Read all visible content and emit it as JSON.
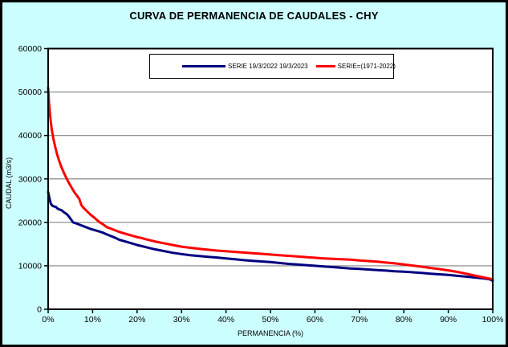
{
  "title": "CURVA DE PERMANENCIA DE CAUDALES - CHY",
  "colors": {
    "background": "#CCFFFF",
    "plot_background": "#FFFFFF",
    "gridline": "#848484",
    "axis": "#000000",
    "series_blue": "#000080",
    "series_red": "#FF0000"
  },
  "chart_data": {
    "type": "line",
    "title": "CURVA DE PERMANENCIA DE CAUDALES - CHY",
    "xlabel": "PERMANENCIA (%)",
    "ylabel": "CAUDAL (m3/s)",
    "xlim": [
      0,
      100
    ],
    "ylim": [
      0,
      60000
    ],
    "grid": "horizontal",
    "legend_position": "top-center-inside",
    "x_ticks": [
      "0%",
      "10%",
      "20%",
      "30%",
      "40%",
      "50%",
      "60%",
      "70%",
      "80%",
      "90%",
      "100%"
    ],
    "x_tick_values": [
      0,
      10,
      20,
      30,
      40,
      50,
      60,
      70,
      80,
      90,
      100
    ],
    "y_ticks": [
      "0",
      "10000",
      "20000",
      "30000",
      "40000",
      "50000",
      "60000"
    ],
    "y_tick_values": [
      0,
      10000,
      20000,
      30000,
      40000,
      50000,
      60000
    ],
    "series": [
      {
        "name": "SERIE 19/3/2022 19/3/2023",
        "color": "#000080",
        "points": [
          [
            0,
            27000
          ],
          [
            0.3,
            25500
          ],
          [
            0.6,
            24300
          ],
          [
            1,
            23800
          ],
          [
            1.8,
            23500
          ],
          [
            2.2,
            23100
          ],
          [
            3,
            22800
          ],
          [
            3.6,
            22300
          ],
          [
            4.2,
            21900
          ],
          [
            4.7,
            21300
          ],
          [
            5.2,
            20600
          ],
          [
            5.6,
            20000
          ],
          [
            6.5,
            19700
          ],
          [
            7.5,
            19300
          ],
          [
            8.5,
            18900
          ],
          [
            9.5,
            18500
          ],
          [
            10.5,
            18200
          ],
          [
            11.5,
            17900
          ],
          [
            12.4,
            17600
          ],
          [
            13,
            17300
          ],
          [
            14,
            16900
          ],
          [
            15,
            16500
          ],
          [
            16,
            16000
          ],
          [
            17,
            15700
          ],
          [
            18,
            15400
          ],
          [
            19,
            15100
          ],
          [
            20,
            14800
          ],
          [
            22,
            14300
          ],
          [
            24,
            13800
          ],
          [
            26,
            13400
          ],
          [
            28,
            13000
          ],
          [
            30,
            12700
          ],
          [
            32,
            12450
          ],
          [
            34,
            12250
          ],
          [
            36,
            12050
          ],
          [
            38,
            11900
          ],
          [
            40,
            11700
          ],
          [
            42,
            11500
          ],
          [
            44,
            11300
          ],
          [
            46,
            11150
          ],
          [
            48,
            11000
          ],
          [
            50,
            10850
          ],
          [
            52,
            10650
          ],
          [
            54,
            10450
          ],
          [
            56,
            10300
          ],
          [
            58,
            10150
          ],
          [
            60,
            10000
          ],
          [
            62,
            9850
          ],
          [
            64,
            9700
          ],
          [
            66,
            9550
          ],
          [
            68,
            9400
          ],
          [
            70,
            9300
          ],
          [
            72,
            9150
          ],
          [
            74,
            9000
          ],
          [
            76,
            8900
          ],
          [
            78,
            8750
          ],
          [
            80,
            8650
          ],
          [
            82,
            8500
          ],
          [
            84,
            8350
          ],
          [
            86,
            8200
          ],
          [
            88,
            8050
          ],
          [
            90,
            7900
          ],
          [
            92,
            7700
          ],
          [
            94,
            7500
          ],
          [
            96,
            7300
          ],
          [
            98,
            7100
          ],
          [
            99.3,
            6900
          ],
          [
            100,
            6550
          ]
        ]
      },
      {
        "name": "SERIE=(1971-2022)",
        "color": "#FF0000",
        "points": [
          [
            0,
            51000
          ],
          [
            0.2,
            47500
          ],
          [
            0.5,
            44000
          ],
          [
            0.8,
            41500
          ],
          [
            1.2,
            39200
          ],
          [
            1.6,
            37300
          ],
          [
            2,
            35700
          ],
          [
            2.5,
            34100
          ],
          [
            3,
            32700
          ],
          [
            3.5,
            31500
          ],
          [
            4,
            30400
          ],
          [
            4.5,
            29400
          ],
          [
            5,
            28500
          ],
          [
            5.5,
            27600
          ],
          [
            6,
            26800
          ],
          [
            6.5,
            26100
          ],
          [
            7,
            25400
          ],
          [
            7.5,
            23900
          ],
          [
            8,
            23300
          ],
          [
            8.5,
            22800
          ],
          [
            9,
            22300
          ],
          [
            9.5,
            21800
          ],
          [
            10,
            21400
          ],
          [
            10.8,
            20700
          ],
          [
            11.6,
            20000
          ],
          [
            12.4,
            19500
          ],
          [
            13.2,
            18900
          ],
          [
            14,
            18600
          ],
          [
            15,
            18200
          ],
          [
            16,
            17800
          ],
          [
            17,
            17500
          ],
          [
            18,
            17200
          ],
          [
            19,
            16900
          ],
          [
            20,
            16600
          ],
          [
            21,
            16400
          ],
          [
            22,
            16100
          ],
          [
            24,
            15600
          ],
          [
            26,
            15200
          ],
          [
            28,
            14800
          ],
          [
            30,
            14400
          ],
          [
            32,
            14150
          ],
          [
            34,
            13900
          ],
          [
            36,
            13700
          ],
          [
            38,
            13500
          ],
          [
            40,
            13350
          ],
          [
            42,
            13200
          ],
          [
            44,
            13050
          ],
          [
            46,
            12900
          ],
          [
            48,
            12750
          ],
          [
            50,
            12600
          ],
          [
            52,
            12450
          ],
          [
            54,
            12300
          ],
          [
            56,
            12150
          ],
          [
            58,
            12000
          ],
          [
            60,
            11850
          ],
          [
            62,
            11700
          ],
          [
            64,
            11600
          ],
          [
            66,
            11500
          ],
          [
            68,
            11400
          ],
          [
            70,
            11250
          ],
          [
            72,
            11100
          ],
          [
            74,
            10950
          ],
          [
            76,
            10750
          ],
          [
            78,
            10550
          ],
          [
            80,
            10300
          ],
          [
            82,
            10050
          ],
          [
            84,
            9800
          ],
          [
            86,
            9500
          ],
          [
            88,
            9250
          ],
          [
            90,
            8950
          ],
          [
            92,
            8600
          ],
          [
            94,
            8200
          ],
          [
            96,
            7750
          ],
          [
            98,
            7300
          ],
          [
            100,
            6900
          ]
        ]
      }
    ]
  }
}
